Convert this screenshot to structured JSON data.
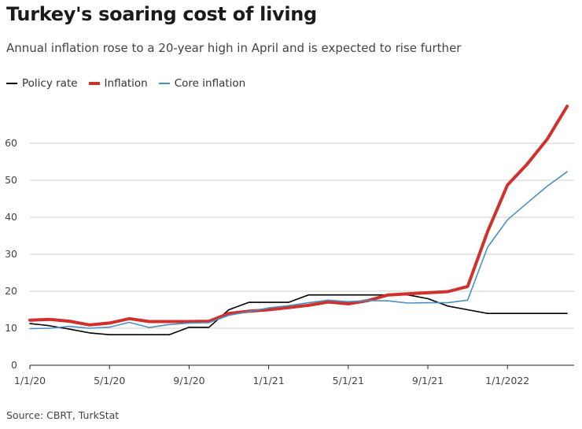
{
  "header": {
    "title": "Turkey's soaring cost of living",
    "subtitle": "Annual inflation rose to a 20-year high in April and is expected to rise further"
  },
  "source": "Source: CBRT, TurkStat",
  "chart_data": {
    "type": "line",
    "title": "Turkey's soaring cost of living",
    "subtitle": "Annual inflation rose to a 20-year high in April and is expected to rise further",
    "xlabel": "",
    "ylabel": "",
    "ylim": [
      0,
      70
    ],
    "yticks": [
      0,
      10,
      20,
      30,
      40,
      50,
      60
    ],
    "grid": true,
    "legend_position": "top-left",
    "x": [
      "1/20",
      "2/20",
      "3/20",
      "4/20",
      "5/20",
      "6/20",
      "7/20",
      "8/20",
      "9/20",
      "10/20",
      "11/20",
      "12/20",
      "1/21",
      "2/21",
      "3/21",
      "4/21",
      "5/21",
      "6/21",
      "7/21",
      "8/21",
      "9/21",
      "10/21",
      "11/21",
      "12/21",
      "1/22",
      "2/22",
      "3/22",
      "4/22"
    ],
    "xtick_labels": [
      {
        "label": "1/1/20",
        "index": 0
      },
      {
        "label": "5/1/20",
        "index": 4
      },
      {
        "label": "9/1/20",
        "index": 8
      },
      {
        "label": "1/1/21",
        "index": 12
      },
      {
        "label": "5/1/21",
        "index": 16
      },
      {
        "label": "9/1/21",
        "index": 20
      },
      {
        "label": "1/1/2022",
        "index": 24
      }
    ],
    "series": [
      {
        "name": "Policy rate",
        "color": "#000000",
        "steps": [
          {
            "t": 0,
            "v": 11.25
          },
          {
            "t": 0.9,
            "v": 10.75
          },
          {
            "t": 2.0,
            "v": 9.75
          },
          {
            "t": 3.0,
            "v": 8.75
          },
          {
            "t": 4.0,
            "v": 8.25
          },
          {
            "t": 5.0,
            "v": 8.25
          },
          {
            "t": 6.0,
            "v": 8.25
          },
          {
            "t": 7.0,
            "v": 8.25
          },
          {
            "t": 8.0,
            "v": 10.25
          },
          {
            "t": 9.0,
            "v": 10.25
          },
          {
            "t": 10.0,
            "v": 15.0
          },
          {
            "t": 11.0,
            "v": 17.0
          },
          {
            "t": 12.0,
            "v": 17.0
          },
          {
            "t": 13.0,
            "v": 17.0
          },
          {
            "t": 14.0,
            "v": 19.0
          },
          {
            "t": 15.0,
            "v": 19.0
          },
          {
            "t": 16.0,
            "v": 19.0
          },
          {
            "t": 17.0,
            "v": 19.0
          },
          {
            "t": 18.0,
            "v": 19.0
          },
          {
            "t": 19.0,
            "v": 19.0
          },
          {
            "t": 20.0,
            "v": 18.0
          },
          {
            "t": 21.0,
            "v": 16.0
          },
          {
            "t": 22.0,
            "v": 15.0
          },
          {
            "t": 23.0,
            "v": 14.0
          },
          {
            "t": 24.0,
            "v": 14.0
          },
          {
            "t": 25.0,
            "v": 14.0
          },
          {
            "t": 26.0,
            "v": 14.0
          },
          {
            "t": 27.0,
            "v": 14.0
          }
        ]
      },
      {
        "name": "Inflation",
        "color": "#d0312d",
        "values": [
          12.2,
          12.4,
          11.9,
          10.9,
          11.4,
          12.6,
          11.8,
          11.8,
          11.8,
          11.9,
          14.0,
          14.6,
          15.0,
          15.6,
          16.2,
          17.1,
          16.6,
          17.5,
          19.0,
          19.3,
          19.6,
          19.9,
          21.3,
          36.1,
          48.7,
          54.4,
          61.1,
          70.0
        ]
      },
      {
        "name": "Core inflation",
        "color": "#4a90c2",
        "values": [
          9.9,
          10.0,
          10.5,
          10.0,
          10.3,
          11.6,
          10.2,
          11.0,
          11.4,
          11.5,
          13.5,
          14.5,
          15.5,
          16.1,
          16.9,
          17.6,
          17.2,
          17.5,
          17.4,
          16.8,
          16.9,
          16.9,
          17.6,
          31.9,
          39.3,
          43.9,
          48.4,
          52.3
        ]
      }
    ]
  }
}
